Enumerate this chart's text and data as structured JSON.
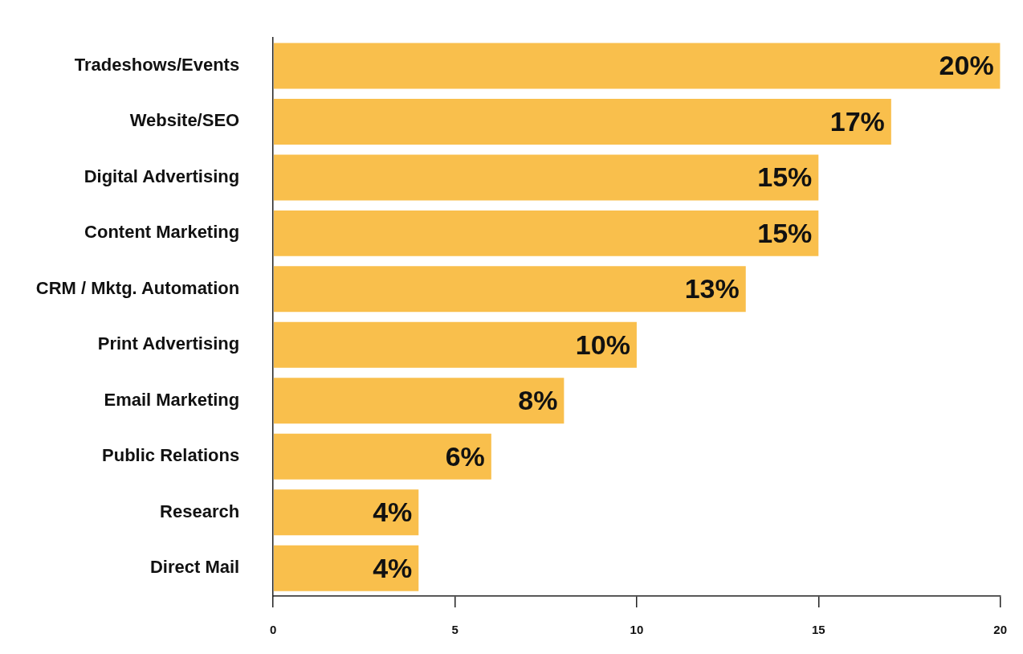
{
  "chart_data": {
    "type": "bar",
    "orientation": "horizontal",
    "categories": [
      "Tradeshows/Events",
      "Website/SEO",
      "Digital Advertising",
      "Content Marketing",
      "CRM / Mktg. Automation",
      "Print Advertising",
      "Email Marketing",
      "Public Relations",
      "Research",
      "Direct Mail"
    ],
    "values": [
      20,
      17,
      15,
      15,
      13,
      10,
      8,
      6,
      4,
      4
    ],
    "value_labels": [
      "20%",
      "17%",
      "15%",
      "15%",
      "13%",
      "10%",
      "8%",
      "6%",
      "4%",
      "4%"
    ],
    "color": "#f9bf4c",
    "xlim": [
      0,
      20
    ],
    "xticks": [
      0,
      5,
      10,
      15,
      20
    ],
    "grid": false,
    "legend": false
  }
}
